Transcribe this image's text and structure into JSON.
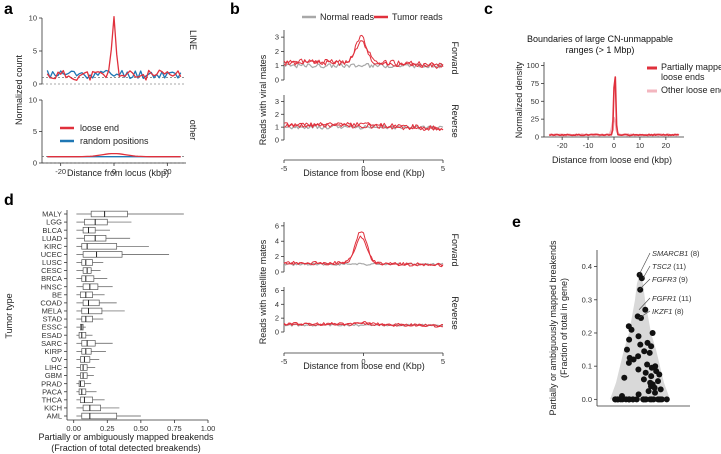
{
  "colors": {
    "tumor": "#e0303c",
    "normal": "#a8a8a8",
    "random": "#1f77b4",
    "other_loose": "#f3b6bf",
    "shade": "#d9d9d9"
  },
  "chart_data": [
    {
      "id": "a",
      "panel_label": "a",
      "type": "line",
      "xlabel": "Distance from locus (kbp)",
      "ylabel": "Normalized count",
      "xlim": [
        -27,
        27
      ],
      "x_ticks": [
        -20,
        0,
        20
      ],
      "facets": [
        {
          "label": "LINE",
          "ylim": [
            0,
            10
          ],
          "y_ticks": [
            0,
            5,
            10
          ],
          "series": [
            {
              "name": "loose end",
              "peak": 9.8,
              "baseline": 1.3
            },
            {
              "name": "random positions",
              "baseline": 1.5
            }
          ]
        },
        {
          "label": "other",
          "ylim": [
            0,
            10
          ],
          "y_ticks": [
            0,
            5,
            10
          ],
          "series": [
            {
              "name": "loose end",
              "peak": 1.5,
              "baseline": 1.0
            },
            {
              "name": "random positions",
              "baseline": 1.0
            }
          ]
        }
      ],
      "legend": [
        "loose end",
        "random positions"
      ]
    },
    {
      "id": "b",
      "panel_label": "b",
      "type": "line",
      "legend": [
        "Normal reads",
        "Tumor reads"
      ],
      "xlabel": "Distance from loose end (Kbp)",
      "x_ticks": [
        -5,
        0,
        5
      ],
      "xlim": [
        -5,
        5
      ],
      "groups": [
        {
          "ylabel": "Reads with viral mates",
          "facets": [
            {
              "label": "Forward",
              "ylim": [
                0,
                3.5
              ],
              "y_ticks": [
                0,
                1,
                2,
                3
              ],
              "tumor_peak": 3.0,
              "tumor_base": 1.3,
              "normal_base": 1.0
            },
            {
              "label": "Reverse",
              "ylim": [
                0,
                3.5
              ],
              "y_ticks": [
                0,
                1,
                2,
                3
              ],
              "tumor_peak": 1.2,
              "tumor_base": 1.2,
              "normal_base": 1.0
            }
          ]
        },
        {
          "ylabel": "Reads with satellite mates",
          "facets": [
            {
              "label": "Forward",
              "ylim": [
                0,
                6.5
              ],
              "y_ticks": [
                0,
                2,
                4,
                6
              ],
              "tumor_peak": 5.3,
              "tumor_base": 1.2,
              "normal_base": 1.0
            },
            {
              "label": "Reverse",
              "ylim": [
                0,
                6.5
              ],
              "y_ticks": [
                0,
                2,
                4,
                6
              ],
              "tumor_peak": 1.4,
              "tumor_base": 1.2,
              "normal_base": 1.0
            }
          ]
        }
      ]
    },
    {
      "id": "c",
      "panel_label": "c",
      "type": "line",
      "title": "Boundaries of large CN-unmappable\nranges (> 1 Mbp)",
      "xlabel": "Distance from loose end (kbp)",
      "ylabel": "Normalized density",
      "xlim": [
        -27,
        27
      ],
      "x_ticks": [
        -20,
        -10,
        0,
        10,
        20
      ],
      "ylim": [
        0,
        105
      ],
      "y_ticks": [
        0,
        25,
        50,
        75,
        100
      ],
      "series": [
        {
          "name": "Partially mapped loose ends",
          "peak": 98,
          "baseline": 3
        },
        {
          "name": "Other loose ends",
          "peak": 26,
          "baseline": 3
        }
      ],
      "legend": [
        "Partially mapped\nloose ends",
        "Other loose ends"
      ]
    },
    {
      "id": "d",
      "panel_label": "d",
      "type": "box",
      "xlabel": "Partially or ambiguously mapped breakends\n(Fraction of total detected breakends)",
      "ylabel": "Tumor type",
      "xlim": [
        -0.05,
        1.0
      ],
      "x_ticks": [
        0.0,
        0.25,
        0.5,
        0.75,
        1.0
      ],
      "x_tick_labels": [
        "0.00",
        "0.25",
        "0.50",
        "0.75",
        "1.00"
      ],
      "categories": [
        "MALY",
        "LGG",
        "BLCA",
        "LUAD",
        "KIRC",
        "UCEC",
        "LUSC",
        "CESC",
        "BRCA",
        "HNSC",
        "BE",
        "COAD",
        "MELA",
        "STAD",
        "ESSC",
        "ESAD",
        "SARC",
        "KIRP",
        "OV",
        "LIHC",
        "GBM",
        "PRAD",
        "PACA",
        "THCA",
        "KICH",
        "AML"
      ],
      "boxes": [
        {
          "min": 0.02,
          "q1": 0.13,
          "median": 0.23,
          "q3": 0.4,
          "max": 0.82
        },
        {
          "min": 0.02,
          "q1": 0.08,
          "median": 0.16,
          "q3": 0.25,
          "max": 0.43
        },
        {
          "min": 0.02,
          "q1": 0.07,
          "median": 0.11,
          "q3": 0.16,
          "max": 0.27
        },
        {
          "min": 0.02,
          "q1": 0.08,
          "median": 0.16,
          "q3": 0.24,
          "max": 0.42
        },
        {
          "min": 0.02,
          "q1": 0.06,
          "median": 0.1,
          "q3": 0.32,
          "max": 0.56
        },
        {
          "min": 0.02,
          "q1": 0.07,
          "median": 0.17,
          "q3": 0.36,
          "max": 0.71
        },
        {
          "min": 0.02,
          "q1": 0.06,
          "median": 0.09,
          "q3": 0.14,
          "max": 0.22
        },
        {
          "min": 0.02,
          "q1": 0.07,
          "median": 0.1,
          "q3": 0.13,
          "max": 0.2
        },
        {
          "min": 0.02,
          "q1": 0.06,
          "median": 0.09,
          "q3": 0.15,
          "max": 0.25
        },
        {
          "min": 0.02,
          "q1": 0.07,
          "median": 0.12,
          "q3": 0.18,
          "max": 0.29
        },
        {
          "min": 0.02,
          "q1": 0.05,
          "median": 0.09,
          "q3": 0.14,
          "max": 0.23
        },
        {
          "min": 0.02,
          "q1": 0.07,
          "median": 0.11,
          "q3": 0.19,
          "max": 0.32
        },
        {
          "min": 0.02,
          "q1": 0.06,
          "median": 0.11,
          "q3": 0.21,
          "max": 0.38
        },
        {
          "min": 0.02,
          "q1": 0.06,
          "median": 0.09,
          "q3": 0.14,
          "max": 0.22
        },
        {
          "min": 0.02,
          "q1": 0.05,
          "median": 0.06,
          "q3": 0.07,
          "max": 0.09
        },
        {
          "min": 0.02,
          "q1": 0.04,
          "median": 0.06,
          "q3": 0.09,
          "max": 0.14
        },
        {
          "min": 0.02,
          "q1": 0.06,
          "median": 0.1,
          "q3": 0.16,
          "max": 0.29
        },
        {
          "min": 0.02,
          "q1": 0.06,
          "median": 0.09,
          "q3": 0.13,
          "max": 0.24
        },
        {
          "min": 0.02,
          "q1": 0.05,
          "median": 0.08,
          "q3": 0.12,
          "max": 0.19
        },
        {
          "min": 0.02,
          "q1": 0.05,
          "median": 0.07,
          "q3": 0.1,
          "max": 0.16
        },
        {
          "min": 0.02,
          "q1": 0.05,
          "median": 0.07,
          "q3": 0.1,
          "max": 0.15
        },
        {
          "min": 0.02,
          "q1": 0.04,
          "median": 0.05,
          "q3": 0.08,
          "max": 0.13
        },
        {
          "min": 0.02,
          "q1": 0.04,
          "median": 0.06,
          "q3": 0.09,
          "max": 0.17
        },
        {
          "min": 0.02,
          "q1": 0.05,
          "median": 0.08,
          "q3": 0.14,
          "max": 0.23
        },
        {
          "min": 0.02,
          "q1": 0.07,
          "median": 0.12,
          "q3": 0.2,
          "max": 0.34
        },
        {
          "min": 0.02,
          "q1": 0.06,
          "median": 0.12,
          "q3": 0.32,
          "max": 0.5
        }
      ]
    },
    {
      "id": "e",
      "panel_label": "e",
      "type": "violin-scatter",
      "ylabel": "Partially or ambiguously mapped breakends\n(Fraction of total in gene)",
      "ylim": [
        -0.02,
        0.45
      ],
      "y_ticks": [
        0.0,
        0.1,
        0.2,
        0.3,
        0.4
      ],
      "y_tick_labels": [
        "0.0",
        "0.1",
        "0.2",
        "0.3",
        "0.4"
      ],
      "annotations": [
        {
          "gene": "SMARCB1",
          "count": "(8)",
          "y": 0.375
        },
        {
          "gene": "TSC2",
          "count": "(11)",
          "y": 0.365
        },
        {
          "gene": "FGFR3",
          "count": "(9)",
          "y": 0.33
        },
        {
          "gene": "FGFR1",
          "count": "(11)",
          "y": 0.27
        },
        {
          "gene": "IKZF1",
          "count": "(8)",
          "y": 0.245
        }
      ],
      "points": [
        0.375,
        0.365,
        0.33,
        0.27,
        0.245,
        0.25,
        0.22,
        0.21,
        0.2,
        0.19,
        0.18,
        0.17,
        0.165,
        0.16,
        0.15,
        0.145,
        0.14,
        0.13,
        0.125,
        0.12,
        0.11,
        0.105,
        0.1,
        0.095,
        0.09,
        0.085,
        0.08,
        0.075,
        0.07,
        0.065,
        0.06,
        0.055,
        0.05,
        0.045,
        0.04,
        0.035,
        0.03,
        0.025,
        0.02,
        0.015,
        0.01,
        0,
        0,
        0,
        0,
        0,
        0,
        0,
        0,
        0,
        0,
        0,
        0,
        0,
        0,
        0,
        0,
        0,
        0,
        0,
        0,
        0,
        0,
        0,
        0,
        0
      ]
    }
  ]
}
